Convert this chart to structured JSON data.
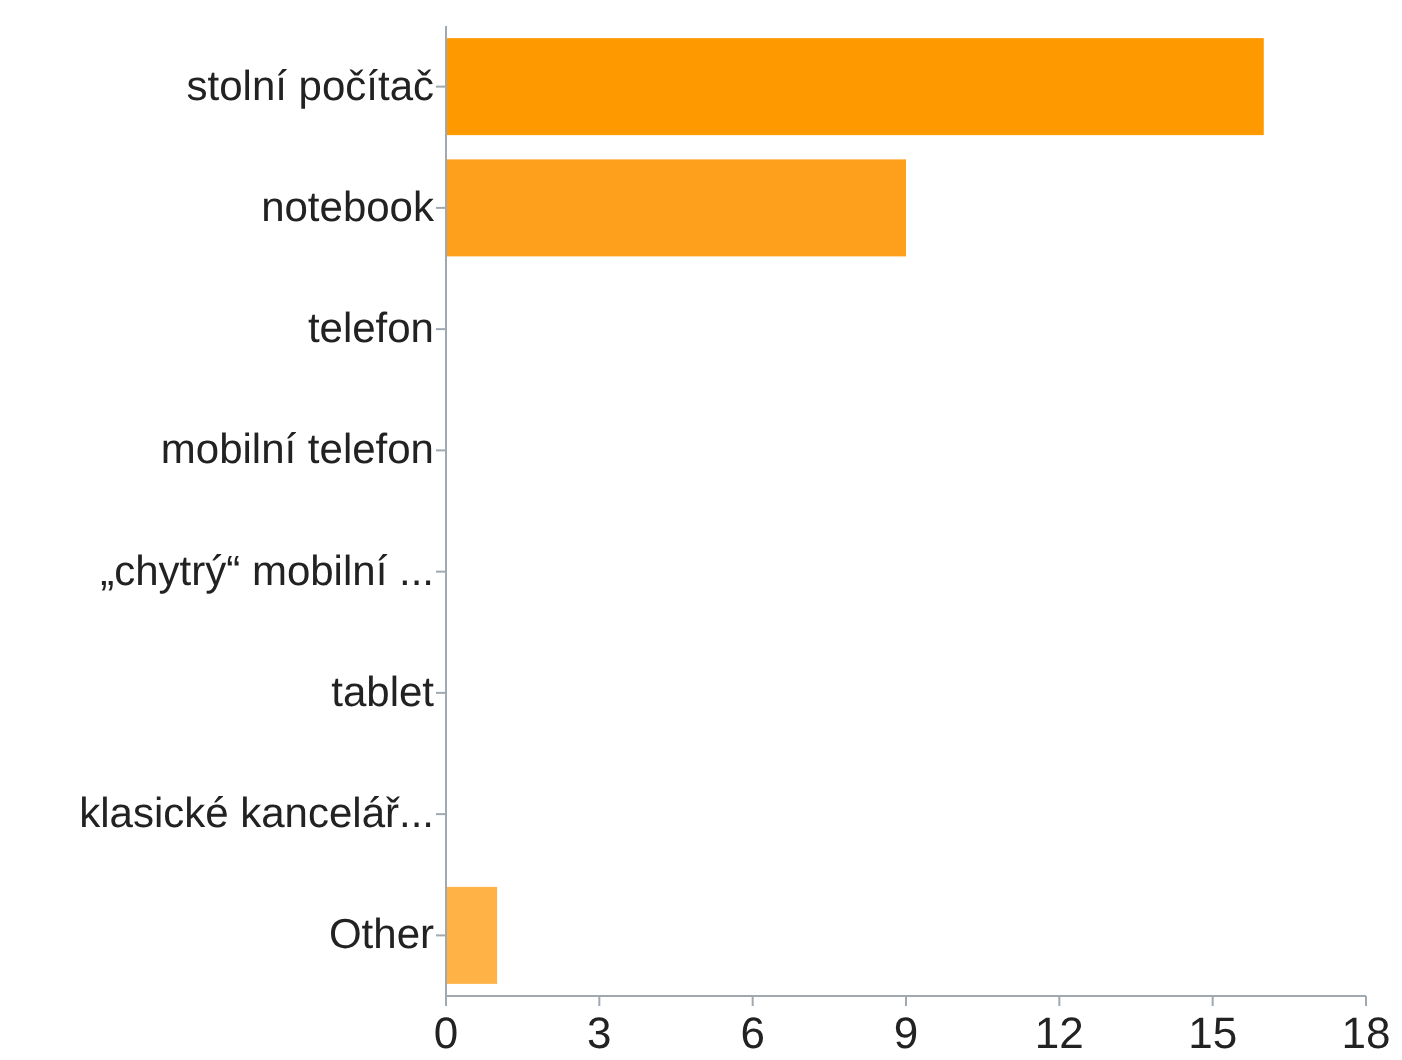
{
  "chart_data": {
    "type": "bar",
    "orientation": "horizontal",
    "categories": [
      "stolní počítač",
      "notebook",
      "telefon",
      "mobilní telefon",
      "„chytrý“ mobilní ...",
      "tablet",
      "klasické kancelář...",
      "Other"
    ],
    "values": [
      16,
      9,
      0,
      0,
      0,
      0,
      0,
      1
    ],
    "colors": [
      "#ff9900",
      "#ffa01c",
      "#ffa01c",
      "#ffa01c",
      "#ffa01c",
      "#ffa01c",
      "#ffa01c",
      "#ffb347"
    ],
    "xlim": [
      0,
      18
    ],
    "xticks": [
      0,
      3,
      6,
      9,
      12,
      15,
      18
    ],
    "grid": false
  }
}
